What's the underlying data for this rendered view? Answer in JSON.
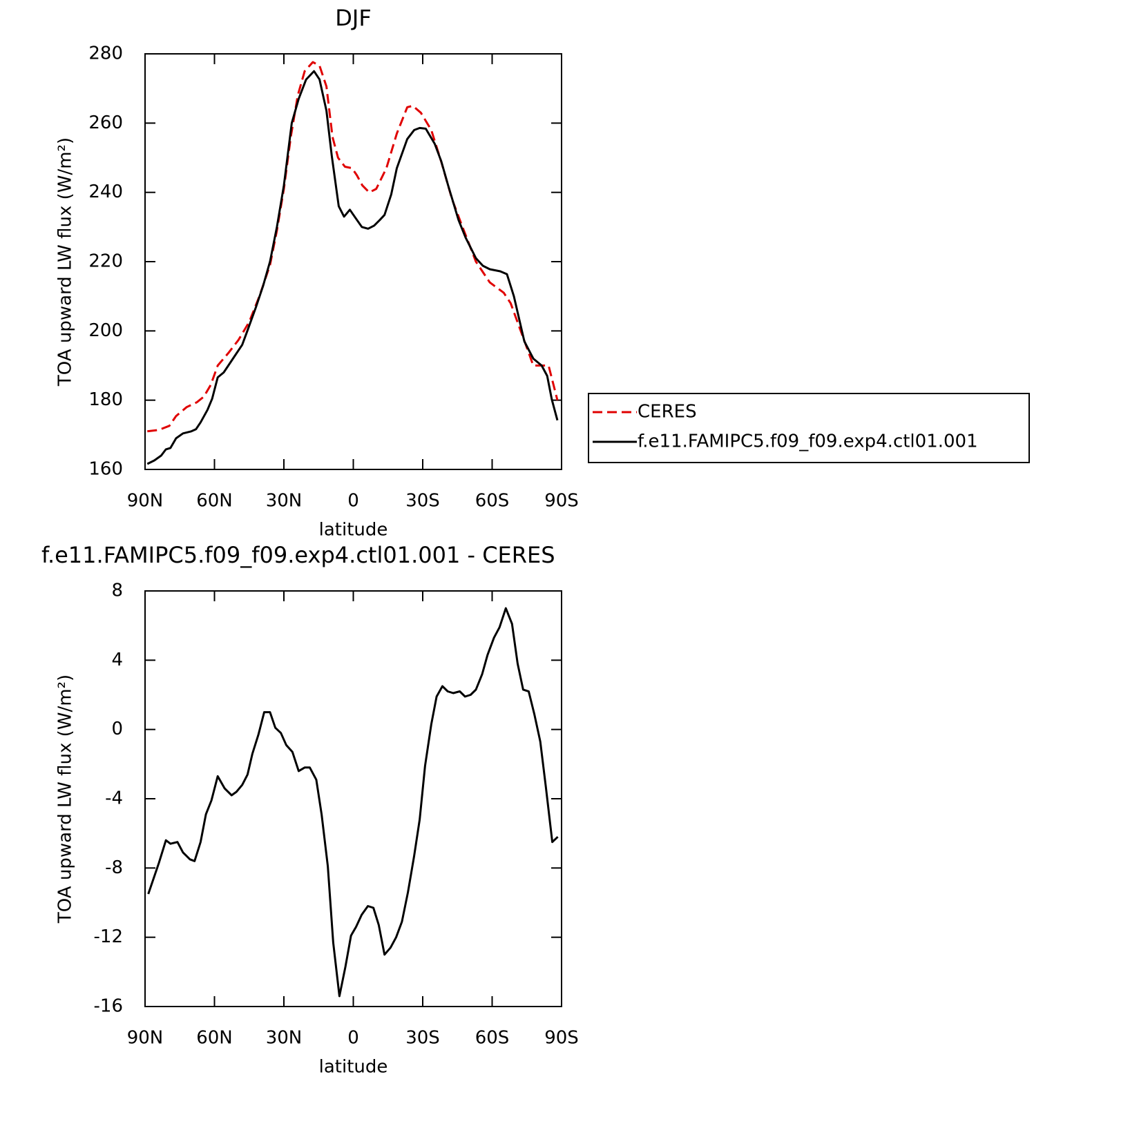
{
  "chart_data": [
    {
      "type": "line",
      "title": "DJF",
      "xlabel": "latitude",
      "ylabel": "TOA upward LW flux (W/m²)",
      "xlim": [
        90,
        -90
      ],
      "xticks": [
        {
          "value": 90,
          "label": "90N"
        },
        {
          "value": 60,
          "label": "60N"
        },
        {
          "value": 30,
          "label": "30N"
        },
        0,
        {
          "value": -30,
          "label": "30S"
        },
        {
          "value": -60,
          "label": "60S"
        },
        {
          "value": -90,
          "label": "90S"
        }
      ],
      "ylim": [
        160,
        280
      ],
      "yticks": [
        160,
        180,
        200,
        220,
        240,
        260,
        280
      ],
      "legend": "right",
      "series": [
        {
          "name": "CERES",
          "color": "#e00000",
          "dash": true,
          "x": [
            89,
            84,
            79.5,
            76.6,
            72,
            67.6,
            64.6,
            61.6,
            58.6,
            54,
            49.6,
            45,
            40.6,
            36,
            33,
            30,
            27,
            24,
            21,
            17.5,
            14.6,
            11.6,
            9,
            6.6,
            3.6,
            0.6,
            -1.5,
            -3.9,
            -6.9,
            -9.9,
            -14.3,
            -18.8,
            -23.3,
            -25.7,
            -29.2,
            -33.7,
            -38.2,
            -42.7,
            -47.2,
            -53,
            -59,
            -65,
            -68,
            -74,
            -77.8,
            -81.4,
            -84.4,
            -88.2
          ],
          "values": [
            171,
            171.4,
            172.6,
            175.4,
            178,
            179.4,
            181,
            184.4,
            190,
            193.6,
            197.4,
            202.6,
            210,
            219,
            229,
            241,
            256,
            268,
            275,
            277.6,
            276.6,
            270.6,
            256,
            250,
            247.4,
            247,
            245,
            242,
            240,
            241,
            247,
            257,
            264.6,
            265,
            263,
            258,
            248.4,
            238,
            230,
            220,
            214,
            211,
            208,
            197,
            190,
            190,
            190,
            180
          ]
        },
        {
          "name": "f.e11.FAMIPC5.f09_f09.exp4.ctl01.001",
          "color": "#000000",
          "dash": false,
          "x": [
            89,
            86,
            83,
            81,
            79,
            76.6,
            73.6,
            70,
            68,
            66,
            63,
            61,
            58.6,
            56,
            54,
            51,
            48,
            45.8,
            42,
            39,
            36,
            33,
            30,
            26.6,
            23.6,
            20.4,
            17,
            14.6,
            11.6,
            9.3,
            6.3,
            4,
            1.5,
            -1,
            -3.7,
            -6.4,
            -9,
            -11.4,
            -13.5,
            -16.4,
            -18.8,
            -23.3,
            -26.3,
            -28.7,
            -31.3,
            -35.2,
            -38,
            -41,
            -45.5,
            -48.5,
            -53,
            -56,
            -59,
            -63.5,
            -66.4,
            -69.4,
            -73.9,
            -77.8,
            -81.4,
            -83.8,
            -85.8,
            -88.2
          ],
          "values": [
            161.6,
            162.6,
            164,
            165.8,
            166.2,
            169,
            170.4,
            171,
            171.6,
            173.6,
            177.2,
            180.4,
            186.6,
            188,
            190,
            193,
            196,
            200,
            207,
            213,
            220,
            230,
            242,
            260,
            267,
            272.6,
            275,
            272.6,
            263.6,
            250.6,
            236,
            233,
            235,
            232.6,
            230,
            229.5,
            230.4,
            232,
            233.5,
            239.4,
            247,
            255.4,
            258,
            258.6,
            258.4,
            254,
            249,
            242,
            232,
            227,
            221,
            218.8,
            217.8,
            217.2,
            216.4,
            210,
            197,
            192,
            190,
            187,
            180.2,
            174.2
          ]
        }
      ]
    },
    {
      "type": "line",
      "title": "f.e11.FAMIPC5.f09_f09.exp4.ctl01.001 - CERES",
      "xlabel": "latitude",
      "ylabel": "TOA upward LW flux (W/m²)",
      "xlim": [
        90,
        -90
      ],
      "xticks": [
        {
          "value": 90,
          "label": "90N"
        },
        {
          "value": 60,
          "label": "60N"
        },
        {
          "value": 30,
          "label": "30N"
        },
        0,
        {
          "value": -30,
          "label": "30S"
        },
        {
          "value": -60,
          "label": "60S"
        },
        {
          "value": -90,
          "label": "90S"
        }
      ],
      "ylim": [
        -16,
        8
      ],
      "yticks": [
        -16,
        -12,
        -8,
        -4,
        0,
        4,
        8
      ],
      "series": [
        {
          "color": "#000000",
          "dash": false,
          "x": [
            88.6,
            84,
            81,
            79,
            76,
            73.6,
            70.6,
            68.6,
            66,
            63.7,
            61.3,
            58.6,
            55.6,
            52.6,
            50.5,
            48,
            45.7,
            43.6,
            41,
            38.5,
            36,
            33.7,
            31.3,
            29,
            26.3,
            23.6,
            21,
            18.8,
            16,
            13.7,
            11,
            8.7,
            6,
            3.4,
            1,
            -1.2,
            -3.6,
            -6.3,
            -8.7,
            -11,
            -13.5,
            -16.1,
            -18.5,
            -21,
            -23.6,
            -26.3,
            -28.7,
            -31,
            -33.7,
            -36,
            -38.5,
            -40.8,
            -43.2,
            -46,
            -48.3,
            -50.7,
            -53,
            -55.7,
            -58,
            -60.8,
            -63.2,
            -65.9,
            -68.6,
            -71,
            -73.4,
            -75.8,
            -78.2,
            -80.8,
            -83.2,
            -86,
            -88.4
          ],
          "values": [
            -9.5,
            -7.7,
            -6.4,
            -6.6,
            -6.5,
            -7.1,
            -7.5,
            -7.6,
            -6.5,
            -4.9,
            -4.1,
            -2.7,
            -3.4,
            -3.8,
            -3.6,
            -3.2,
            -2.6,
            -1.4,
            -0.3,
            1.0,
            1.0,
            0.1,
            -0.2,
            -0.9,
            -1.3,
            -2.4,
            -2.2,
            -2.2,
            -2.9,
            -4.9,
            -7.9,
            -12.3,
            -15.4,
            -13.7,
            -11.9,
            -11.4,
            -10.7,
            -10.2,
            -10.3,
            -11.3,
            -13.0,
            -12.6,
            -12.0,
            -11.1,
            -9.4,
            -7.3,
            -5.2,
            -2.1,
            0.3,
            1.9,
            2.5,
            2.2,
            2.1,
            2.2,
            1.9,
            2.0,
            2.3,
            3.2,
            4.3,
            5.3,
            5.9,
            7.0,
            6.1,
            3.8,
            2.3,
            2.2,
            0.9,
            -0.7,
            -3.3,
            -6.5,
            -6.2
          ]
        }
      ]
    }
  ]
}
